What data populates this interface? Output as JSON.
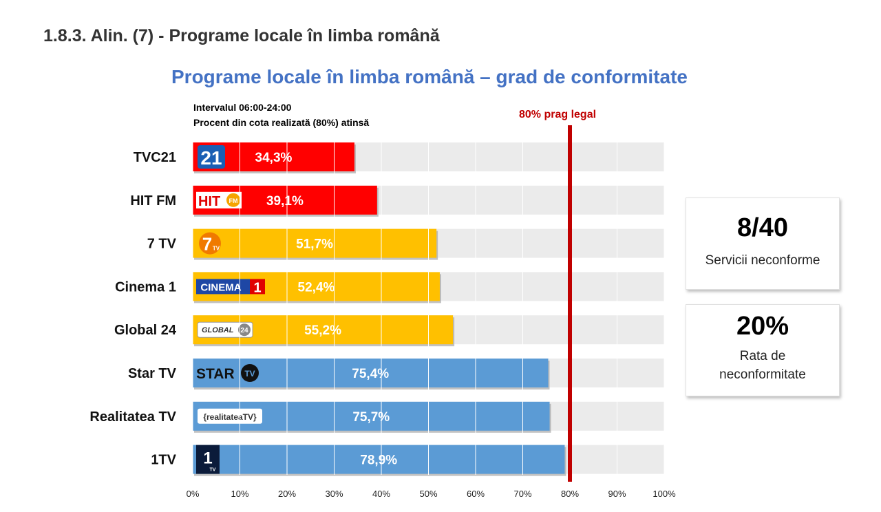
{
  "heading": "1.8.3. Alin. (7) - Programe locale în limba română",
  "chart_data": {
    "type": "bar",
    "orientation": "horizontal",
    "title": "Programe locale în limba română – grad de conformitate",
    "notes": [
      "Intervalul 06:00-24:00",
      "Procent din cota realizată (80%) atinsă"
    ],
    "categories": [
      "TVC21",
      "HIT FM",
      "7 TV",
      "Cinema 1",
      "Global 24",
      "Star TV",
      "Realitatea TV",
      "1TV"
    ],
    "values": [
      34.3,
      39.1,
      51.7,
      52.4,
      55.2,
      75.4,
      75.7,
      78.9
    ],
    "value_labels": [
      "34,3%",
      "39,1%",
      "51,7%",
      "52,4%",
      "55,2%",
      "75,4%",
      "75,7%",
      "78,9%"
    ],
    "bar_colors": [
      "#FF0000",
      "#FF0000",
      "#FFC000",
      "#FFC000",
      "#FFC000",
      "#5B9BD5",
      "#5B9BD5",
      "#5B9BD5"
    ],
    "logos": [
      "tvc21-logo",
      "hit-fm-logo",
      "7tv-logo",
      "cinema1-logo",
      "global24-logo",
      "star-tv-logo",
      "realitatea-tv-logo",
      "1tv-logo"
    ],
    "xlim": [
      0,
      100
    ],
    "xticks": [
      0,
      10,
      20,
      30,
      40,
      50,
      60,
      70,
      80,
      90,
      100
    ],
    "xtick_labels": [
      "0%",
      "10%",
      "20%",
      "30%",
      "40%",
      "50%",
      "60%",
      "70%",
      "80%",
      "90%",
      "100%"
    ],
    "background_track": "#EBEBEB",
    "threshold": {
      "value": 80,
      "label": "80% prag legal",
      "color": "#C00000"
    }
  },
  "stats": [
    {
      "value": "8/40",
      "label": "Servicii neconforme"
    },
    {
      "value": "20%",
      "label_lines": [
        "Rata de",
        "neconformitate"
      ]
    }
  ]
}
